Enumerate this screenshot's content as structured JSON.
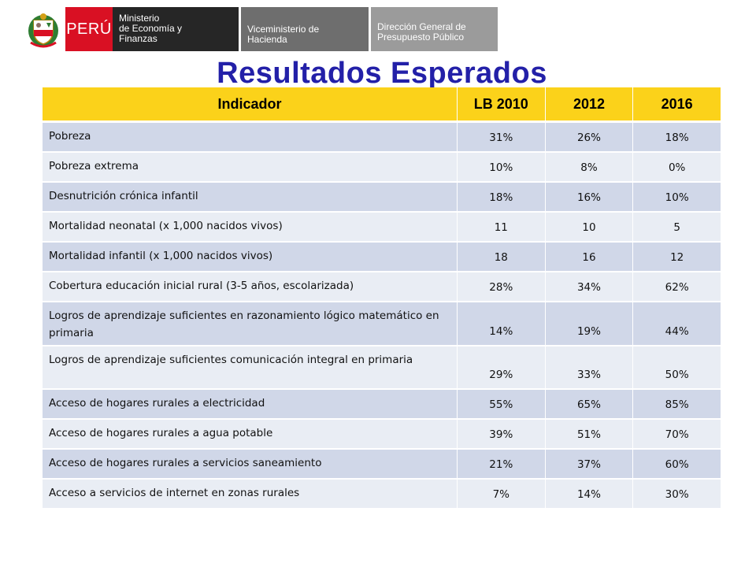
{
  "header": {
    "country": "PERÚ",
    "segments": [
      {
        "lines": [
          "Ministerio",
          "de Economía y",
          "Finanzas"
        ]
      },
      {
        "lines": [
          "Viceministerio de",
          "Hacienda"
        ]
      },
      {
        "lines": [
          "Dirección General de",
          "Presupuesto Público"
        ]
      }
    ],
    "colors": {
      "red": "#d91023",
      "dark": "#262626",
      "mid": "#6e6e6e",
      "light": "#9b9b9b"
    }
  },
  "title": "Resultados Esperados",
  "table": {
    "columns": [
      "Indicador",
      "LB 2010",
      "2012",
      "2016"
    ],
    "header_color": "#fbd21a",
    "rows": [
      {
        "indicator": "Pobreza",
        "lb2010": "31%",
        "y2012": "26%",
        "y2016": "18%"
      },
      {
        "indicator": "Pobreza extrema",
        "lb2010": "10%",
        "y2012": "8%",
        "y2016": "0%"
      },
      {
        "indicator": "Desnutrición crónica infantil",
        "lb2010": "18%",
        "y2012": "16%",
        "y2016": "10%"
      },
      {
        "indicator": "Mortalidad neonatal (x 1,000 nacidos vivos)",
        "lb2010": "11",
        "y2012": "10",
        "y2016": "5"
      },
      {
        "indicator": "Mortalidad infantil (x 1,000 nacidos vivos)",
        "lb2010": "18",
        "y2012": "16",
        "y2016": "12"
      },
      {
        "indicator": "Cobertura educación inicial rural (3-5 años, escolarizada)",
        "lb2010": "28%",
        "y2012": "34%",
        "y2016": "62%"
      },
      {
        "indicator": "Logros de aprendizaje suficientes en razonamiento lógico matemático en primaria",
        "lb2010": "14%",
        "y2012": "19%",
        "y2016": "44%"
      },
      {
        "indicator": "Logros de aprendizaje suficientes comunicación integral en primaria",
        "lb2010": "29%",
        "y2012": "33%",
        "y2016": "50%"
      },
      {
        "indicator": "Acceso de hogares rurales a electricidad",
        "lb2010": "55%",
        "y2012": "65%",
        "y2016": "85%"
      },
      {
        "indicator": "Acceso de hogares rurales a agua potable",
        "lb2010": "39%",
        "y2012": "51%",
        "y2016": "70%"
      },
      {
        "indicator": "Acceso de hogares rurales a servicios saneamiento",
        "lb2010": "21%",
        "y2012": "37%",
        "y2016": "60%"
      },
      {
        "indicator": "Acceso a servicios de internet en zonas rurales",
        "lb2010": "7%",
        "y2012": "14%",
        "y2016": "30%"
      }
    ]
  }
}
